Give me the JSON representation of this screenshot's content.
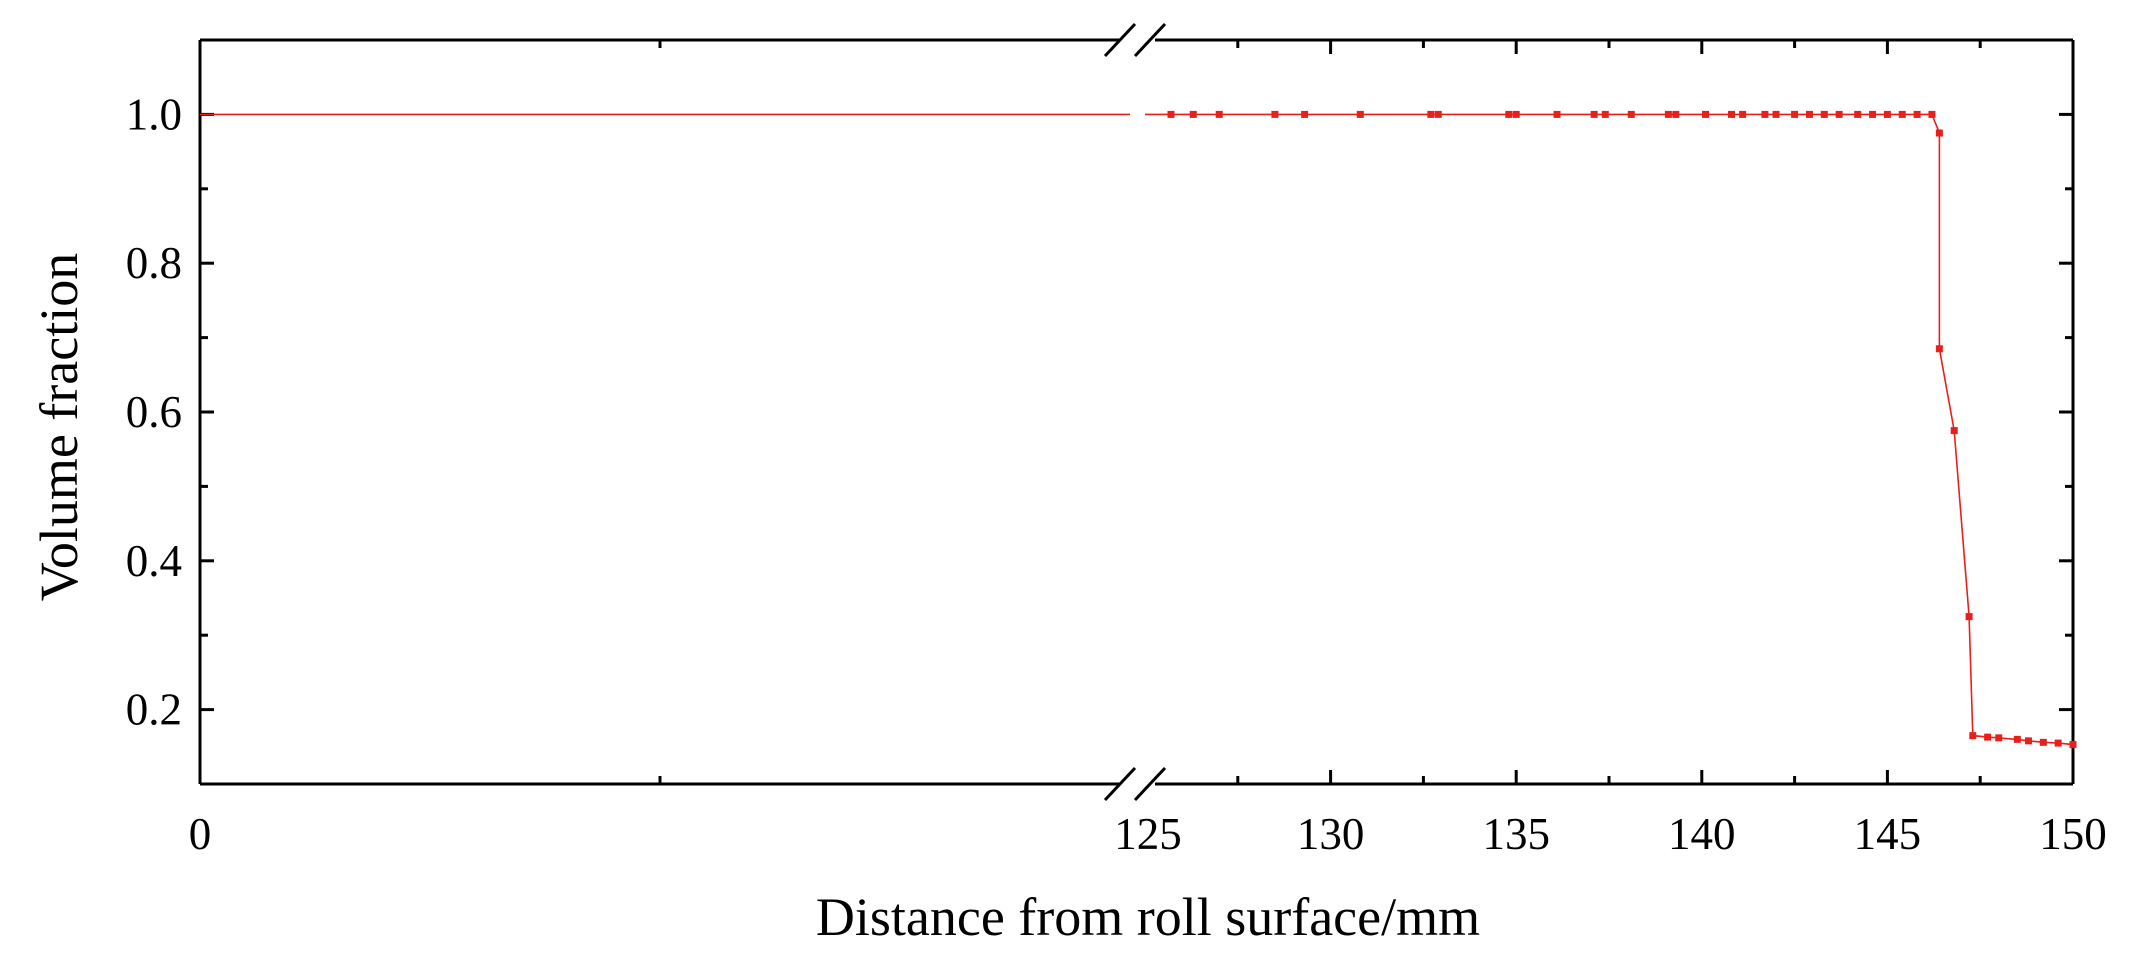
{
  "chart_data": {
    "type": "line",
    "title": "",
    "xlabel": "Distance from roll surface/mm",
    "ylabel": "Volume fraction",
    "x_axis_break": {
      "from": 0,
      "to": 125
    },
    "xlim": [
      125,
      150
    ],
    "ylim": [
      0.1,
      1.1
    ],
    "xticks": [
      0,
      125,
      130,
      135,
      140,
      145,
      150
    ],
    "yticks": [
      0.2,
      0.4,
      0.6,
      0.8,
      1.0
    ],
    "ytick_labels": [
      "0.2",
      "0.4",
      "0.6",
      "0.8",
      "1.0"
    ],
    "grid": false,
    "series": [
      {
        "color": "#e8201c",
        "left_segment": {
          "y": 1.0
        },
        "x": [
          125.7,
          126.3,
          127.0,
          128.5,
          129.3,
          130.8,
          132.7,
          132.9,
          134.8,
          135.0,
          136.1,
          137.1,
          137.4,
          138.1,
          139.1,
          139.3,
          140.1,
          140.8,
          141.1,
          141.7,
          142.0,
          142.5,
          142.9,
          143.3,
          143.7,
          144.2,
          144.6,
          145.0,
          145.4,
          145.8,
          146.2,
          146.4,
          146.4,
          146.8,
          147.2,
          147.3,
          147.7,
          148.0,
          148.5,
          148.8,
          149.2,
          149.6,
          150.0
        ],
        "y": [
          1.0,
          1.0,
          1.0,
          1.0,
          1.0,
          1.0,
          1.0,
          1.0,
          1.0,
          1.0,
          1.0,
          1.0,
          1.0,
          1.0,
          1.0,
          1.0,
          1.0,
          1.0,
          1.0,
          1.0,
          1.0,
          1.0,
          1.0,
          1.0,
          1.0,
          1.0,
          1.0,
          1.0,
          1.0,
          1.0,
          1.0,
          0.975,
          0.685,
          0.575,
          0.325,
          0.165,
          0.163,
          0.162,
          0.16,
          0.158,
          0.156,
          0.155,
          0.153
        ]
      }
    ]
  }
}
